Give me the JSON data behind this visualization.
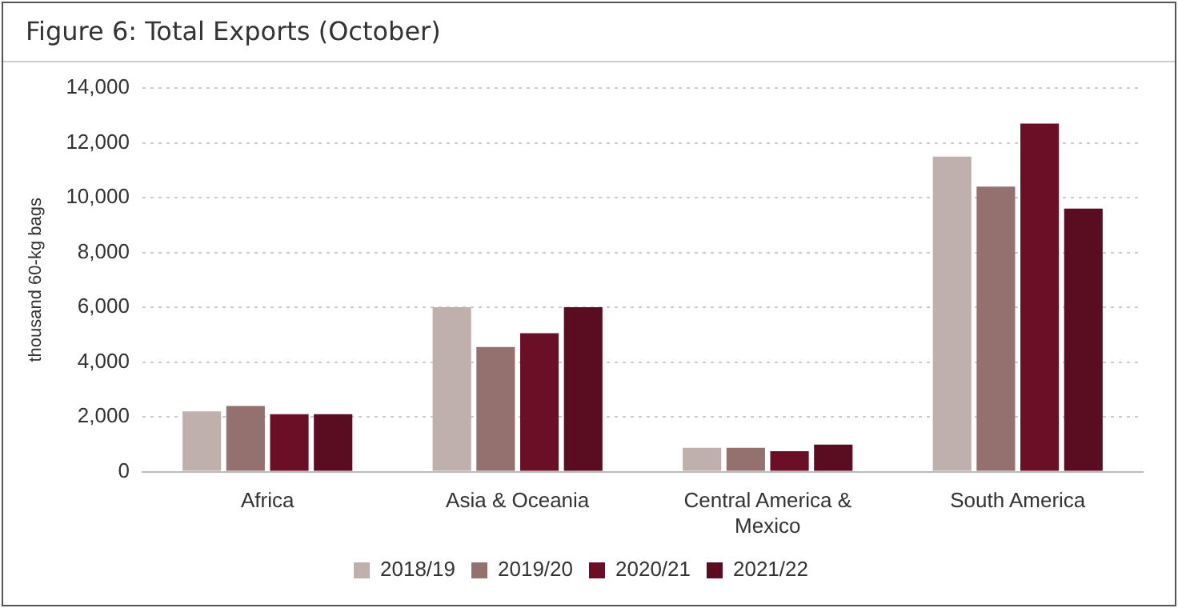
{
  "chart_data": {
    "type": "bar",
    "title": "Figure 6: Total Exports (October)",
    "ylabel": "thousand 60-kg bags",
    "categories": [
      "Africa",
      "Asia & Oceania",
      "Central America & Mexico",
      "South America"
    ],
    "series": [
      {
        "name": "2018/19",
        "color": "#bfb0ae",
        "values": [
          2200,
          6000,
          870,
          11500
        ]
      },
      {
        "name": "2019/20",
        "color": "#94706f",
        "values": [
          2400,
          4550,
          870,
          10400
        ]
      },
      {
        "name": "2020/21",
        "color": "#6b0f26",
        "values": [
          2100,
          5050,
          750,
          12700
        ]
      },
      {
        "name": "2021/22",
        "color": "#5a0c20",
        "values": [
          2100,
          6000,
          990,
          9600
        ]
      }
    ],
    "ylim": [
      0,
      14000
    ],
    "yticks": [
      0,
      {
        "value": 2000,
        "label": "2,000"
      },
      {
        "value": 4000,
        "label": "4,000"
      },
      {
        "value": 6000,
        "label": "6,000"
      },
      {
        "value": 8000,
        "label": "8,000"
      },
      {
        "value": 10000,
        "label": "10,000"
      },
      {
        "value": 12000,
        "label": "12,000"
      },
      {
        "value": 14000,
        "label": "14,000"
      }
    ],
    "grid": "y",
    "legend": "bottom"
  }
}
